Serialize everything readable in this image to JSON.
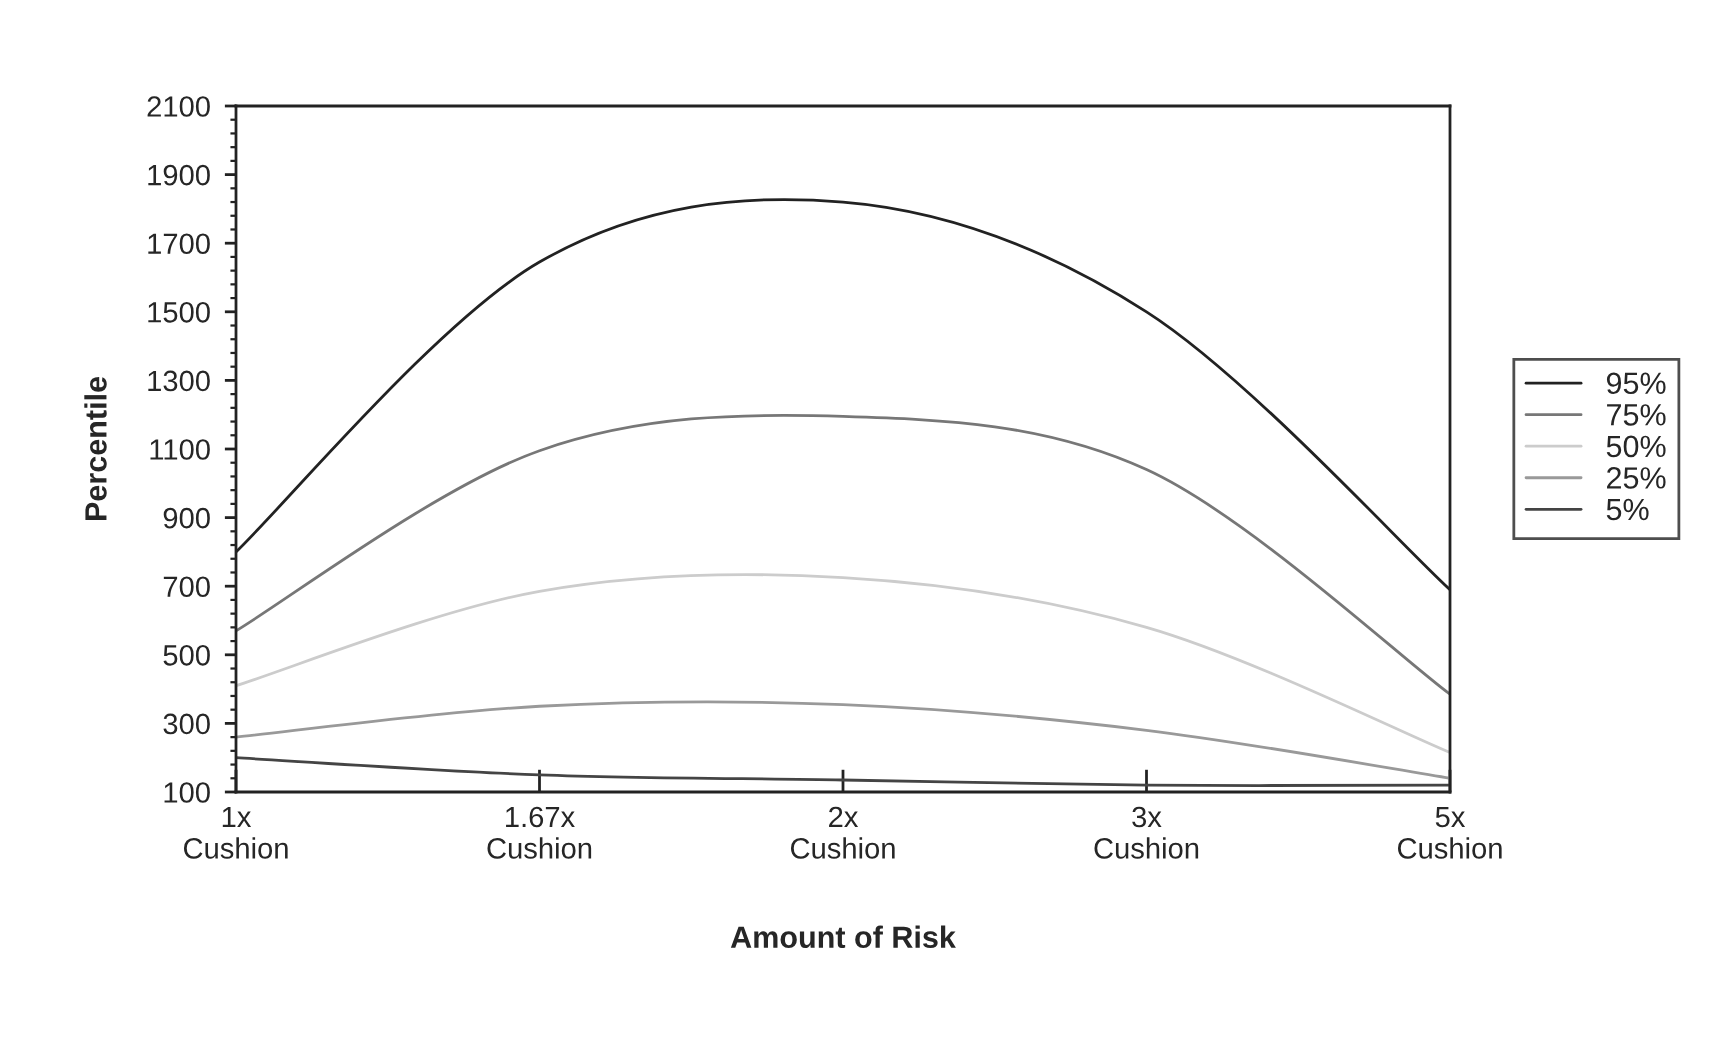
{
  "chart_data": {
    "type": "line",
    "xlabel": "Amount of Risk",
    "ylabel": "Percentile",
    "categories": [
      "1x\nCushion",
      "1.67x\nCushion",
      "2x\nCushion",
      "3x\nCushion",
      "5x\nCushion"
    ],
    "series": [
      {
        "name": "95%",
        "color": "#222222",
        "values": [
          800,
          1645,
          1820,
          1500,
          690
        ]
      },
      {
        "name": "75%",
        "color": "#777777",
        "values": [
          570,
          1095,
          1195,
          1040,
          385
        ]
      },
      {
        "name": "50%",
        "color": "#cccccc",
        "values": [
          410,
          685,
          725,
          580,
          215
        ]
      },
      {
        "name": "25%",
        "color": "#999999",
        "values": [
          260,
          350,
          355,
          280,
          140
        ]
      },
      {
        "name": "5%",
        "color": "#444444",
        "values": [
          200,
          150,
          135,
          120,
          120
        ]
      }
    ],
    "ylim": [
      100,
      2100
    ],
    "yticks": [
      100,
      300,
      500,
      700,
      900,
      1100,
      1300,
      1500,
      1700,
      1900,
      2100
    ],
    "grid": false,
    "legend": "right",
    "marker": "none",
    "line_style": "solid"
  }
}
